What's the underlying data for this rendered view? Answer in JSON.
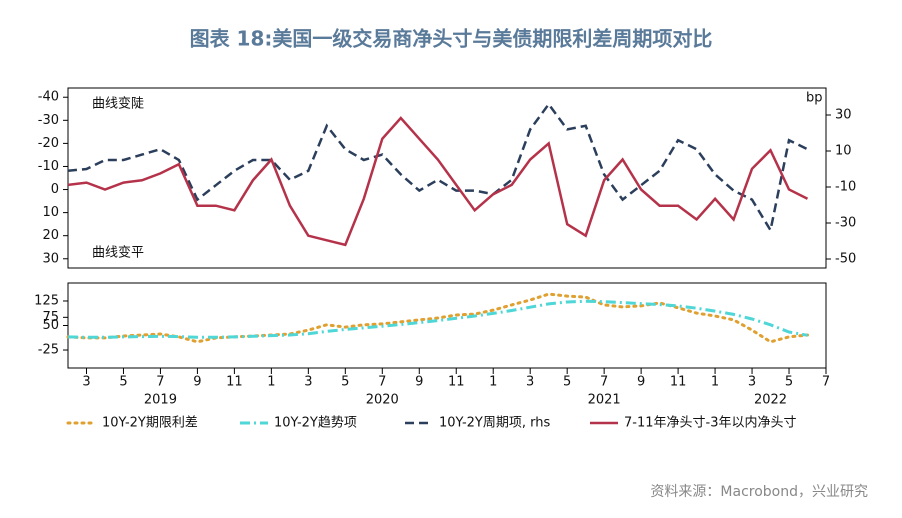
{
  "title": "图表 18:美国一级交易商净头寸与美债期限利差周期项对比",
  "source": "资料来源：Macrobond，兴业研究",
  "chart_data": [
    {
      "type": "line",
      "x": [
        "2019-02",
        "2019-03",
        "2019-04",
        "2019-05",
        "2019-06",
        "2019-07",
        "2019-08",
        "2019-09",
        "2019-10",
        "2019-11",
        "2019-12",
        "2020-01",
        "2020-02",
        "2020-03",
        "2020-04",
        "2020-05",
        "2020-06",
        "2020-07",
        "2020-08",
        "2020-09",
        "2020-10",
        "2020-11",
        "2020-12",
        "2021-01",
        "2021-02",
        "2021-03",
        "2021-04",
        "2021-05",
        "2021-06",
        "2021-07",
        "2021-08",
        "2021-09",
        "2021-10",
        "2021-11",
        "2021-12",
        "2022-01",
        "2022-02",
        "2022-03",
        "2022-04",
        "2022-05",
        "2022-06"
      ],
      "xlim": [
        "2019-02",
        "2022-07"
      ],
      "ylim": [
        -44,
        34
      ],
      "y_inverted": true,
      "yticks": [
        -40,
        -30,
        -20,
        -10,
        0,
        10,
        20,
        30
      ],
      "y2lim": [
        -55,
        45
      ],
      "y2ticks": [
        30,
        10,
        -10,
        -30,
        -50
      ],
      "y2_label": "bp",
      "annotations": [
        "曲线变陡",
        "曲线变平"
      ],
      "series": [
        {
          "name": "10Y-2Y周期项, rhs",
          "color": "#2b3f5c",
          "dash": "dashed",
          "axis": "y2",
          "values": [
            -1,
            0,
            5,
            5,
            8,
            11,
            5,
            -17,
            -9,
            -1,
            5,
            5,
            -6,
            -1,
            24,
            11,
            5,
            8,
            -3,
            -12,
            -6,
            -12,
            -12,
            -14,
            -6,
            22,
            36,
            22,
            24,
            -3,
            -17,
            -9,
            -1,
            16,
            11,
            -3,
            -12,
            -17,
            -34,
            16,
            11
          ]
        },
        {
          "name": "7-11年净头寸-3年以内净头寸",
          "color": "#b5334a",
          "dash": "solid",
          "values": [
            -2,
            -3,
            0,
            -3,
            -4,
            -7,
            -11,
            7,
            7,
            9,
            -4,
            -13,
            7,
            20,
            22,
            24,
            4,
            -22,
            -31,
            -22,
            -13,
            -2,
            9,
            2,
            -2,
            -13,
            -20,
            15,
            20,
            -4,
            -13,
            0,
            7,
            7,
            13,
            4,
            13,
            -9,
            -17,
            0,
            4
          ]
        }
      ]
    },
    {
      "type": "line",
      "x": [
        "2019-02",
        "2019-03",
        "2019-04",
        "2019-05",
        "2019-06",
        "2019-07",
        "2019-08",
        "2019-09",
        "2019-10",
        "2019-11",
        "2019-12",
        "2020-01",
        "2020-02",
        "2020-03",
        "2020-04",
        "2020-05",
        "2020-06",
        "2020-07",
        "2020-08",
        "2020-09",
        "2020-10",
        "2020-11",
        "2020-12",
        "2021-01",
        "2021-02",
        "2021-03",
        "2021-04",
        "2021-05",
        "2021-06",
        "2021-07",
        "2021-08",
        "2021-09",
        "2021-10",
        "2021-11",
        "2021-12",
        "2022-01",
        "2022-02",
        "2022-03",
        "2022-04",
        "2022-05",
        "2022-06"
      ],
      "xlim": [
        "2019-02",
        "2022-07"
      ],
      "ylim": [
        -80,
        180
      ],
      "yticks": [
        125,
        75,
        50,
        -25
      ],
      "xticks": [
        {
          "value": "2019-03",
          "label": "3"
        },
        {
          "value": "2019-05",
          "label": "5"
        },
        {
          "value": "2019-07",
          "label": "7"
        },
        {
          "value": "2019-09",
          "label": "9"
        },
        {
          "value": "2019-11",
          "label": "11"
        },
        {
          "value": "2020-01",
          "label": "1"
        },
        {
          "value": "2020-03",
          "label": "3"
        },
        {
          "value": "2020-05",
          "label": "5"
        },
        {
          "value": "2020-07",
          "label": "7"
        },
        {
          "value": "2020-09",
          "label": "9"
        },
        {
          "value": "2020-11",
          "label": "11"
        },
        {
          "value": "2021-01",
          "label": "1"
        },
        {
          "value": "2021-03",
          "label": "3"
        },
        {
          "value": "2021-05",
          "label": "5"
        },
        {
          "value": "2021-07",
          "label": "7"
        },
        {
          "value": "2021-09",
          "label": "9"
        },
        {
          "value": "2021-11",
          "label": "11"
        },
        {
          "value": "2022-01",
          "label": "1"
        },
        {
          "value": "2022-03",
          "label": "3"
        },
        {
          "value": "2022-05",
          "label": "5"
        },
        {
          "value": "2022-07",
          "label": "7"
        }
      ],
      "year_labels": [
        {
          "value": "2019-07",
          "label": "2019"
        },
        {
          "value": "2020-07",
          "label": "2020"
        },
        {
          "value": "2021-07",
          "label": "2021"
        },
        {
          "value": "2022-04",
          "label": "2022"
        }
      ],
      "series": [
        {
          "name": "10Y-2Y期限利差",
          "color": "#e0a030",
          "dash": "dotted",
          "values": [
            15,
            12,
            12,
            18,
            21,
            24,
            15,
            0,
            12,
            15,
            18,
            21,
            24,
            36,
            52,
            45,
            52,
            55,
            61,
            67,
            73,
            82,
            85,
            97,
            113,
            128,
            146,
            140,
            137,
            113,
            107,
            110,
            119,
            104,
            88,
            79,
            67,
            36,
            0,
            15,
            21
          ]
        },
        {
          "name": "10Y-2Y趋势项",
          "color": "#4fd6d6",
          "dash": "dashdot",
          "values": [
            15,
            14,
            14,
            15,
            16,
            17,
            16,
            14,
            14,
            15,
            17,
            19,
            21,
            25,
            32,
            38,
            43,
            48,
            53,
            59,
            65,
            72,
            79,
            87,
            96,
            106,
            116,
            122,
            124,
            123,
            120,
            117,
            114,
            110,
            103,
            94,
            84,
            70,
            52,
            30,
            20
          ]
        }
      ]
    }
  ]
}
